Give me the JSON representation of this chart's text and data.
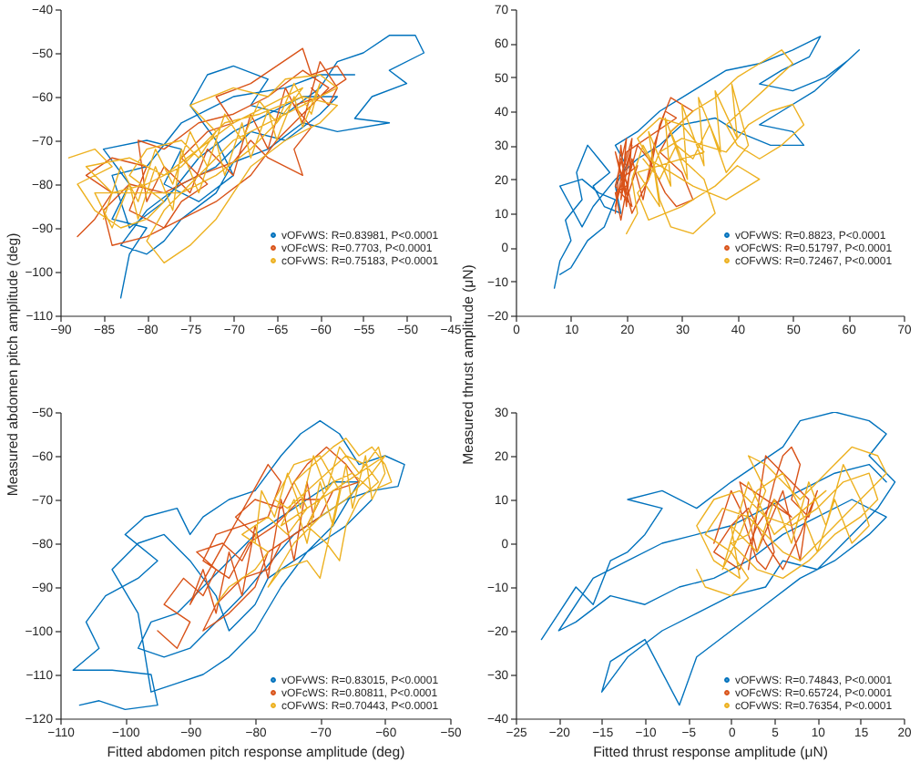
{
  "chart_data": [
    {
      "type": "line",
      "ylabel": "Measured abdomen pitch amplitude (deg)",
      "xlim": [
        -90,
        -45
      ],
      "ylim": [
        -110,
        -40
      ],
      "xticks": [
        -90,
        -85,
        -80,
        -75,
        -70,
        -65,
        -60,
        -55,
        -50,
        -45
      ],
      "yticks": [
        -110,
        -100,
        -90,
        -80,
        -70,
        -60,
        -50,
        -40
      ],
      "legend": "bottom right",
      "series": [
        {
          "name": "vOFvWS: R=0.83981, P<0.0001",
          "color": "#0072bd",
          "x": [
            -83,
            -82,
            -80,
            -84,
            -82,
            -85,
            -80,
            -76,
            -78,
            -74,
            -70,
            -72,
            -75,
            -73,
            -70,
            -66,
            -68,
            -64,
            -60,
            -58,
            -55,
            -52,
            -49,
            -48,
            -52,
            -50,
            -54,
            -56,
            -52,
            -58,
            -62,
            -66,
            -70,
            -72,
            -76,
            -78,
            -80,
            -83,
            -80,
            -76,
            -72,
            -68,
            -64,
            -60,
            -58,
            -62,
            -66,
            -70,
            -74,
            -78,
            -82,
            -84,
            -80,
            -76,
            -70,
            -64,
            -60,
            -56
          ],
          "values": [
            -106,
            -96,
            -90,
            -88,
            -80,
            -72,
            -70,
            -72,
            -80,
            -84,
            -78,
            -70,
            -62,
            -55,
            -53,
            -56,
            -62,
            -64,
            -58,
            -52,
            -50,
            -46,
            -46,
            -50,
            -54,
            -57,
            -60,
            -65,
            -66,
            -68,
            -66,
            -72,
            -75,
            -82,
            -88,
            -93,
            -96,
            -94,
            -86,
            -80,
            -76,
            -68,
            -70,
            -64,
            -60,
            -60,
            -64,
            -68,
            -74,
            -84,
            -90,
            -78,
            -76,
            -66,
            -60,
            -58,
            -55,
            -55
          ]
        },
        {
          "name": "vOFcWS: R=0.7703, P<0.0001",
          "color": "#d95319",
          "x": [
            -88,
            -86,
            -84,
            -87,
            -84,
            -80,
            -82,
            -78,
            -76,
            -73,
            -76,
            -73,
            -70,
            -72,
            -68,
            -65,
            -62,
            -61,
            -58,
            -57,
            -60,
            -63,
            -61,
            -63,
            -62,
            -66,
            -68,
            -70,
            -74,
            -78,
            -82,
            -85,
            -84,
            -80,
            -76,
            -72,
            -68,
            -65,
            -62,
            -59,
            -62,
            -66,
            -70,
            -74,
            -78,
            -81,
            -80,
            -78,
            -75,
            -73,
            -70,
            -68,
            -66,
            -64,
            -62,
            -60,
            -58,
            -59,
            -61
          ],
          "values": [
            -92,
            -88,
            -82,
            -78,
            -74,
            -76,
            -86,
            -90,
            -84,
            -80,
            -74,
            -68,
            -66,
            -60,
            -57,
            -53,
            -49,
            -55,
            -53,
            -56,
            -60,
            -62,
            -67,
            -72,
            -78,
            -74,
            -70,
            -75,
            -78,
            -82,
            -80,
            -86,
            -94,
            -92,
            -88,
            -84,
            -78,
            -70,
            -64,
            -58,
            -54,
            -60,
            -64,
            -66,
            -72,
            -70,
            -84,
            -76,
            -82,
            -72,
            -78,
            -64,
            -72,
            -58,
            -66,
            -52,
            -58,
            -62,
            -58
          ]
        },
        {
          "name": "cOFvWS: R=0.75183, P<0.0001",
          "color": "#edb120",
          "x": [
            -89,
            -86,
            -84,
            -88,
            -86,
            -83,
            -80,
            -78,
            -82,
            -80,
            -76,
            -74,
            -72,
            -75,
            -70,
            -66,
            -64,
            -60,
            -58,
            -62,
            -66,
            -70,
            -74,
            -78,
            -80,
            -78,
            -75,
            -72,
            -70,
            -68,
            -64,
            -60,
            -58,
            -62,
            -67,
            -71,
            -76,
            -80,
            -84,
            -87,
            -82,
            -78,
            -74,
            -70,
            -66,
            -62,
            -65,
            -68,
            -72,
            -76,
            -86,
            -84,
            -82,
            -81,
            -79,
            -77,
            -76,
            -74,
            -72,
            -71,
            -69,
            -68,
            -66,
            -65,
            -63,
            -62,
            -60,
            -61,
            -63,
            -65,
            -67,
            -69,
            -71,
            -73,
            -75,
            -77,
            -79,
            -81,
            -83,
            -85
          ],
          "values": [
            -74,
            -72,
            -76,
            -80,
            -86,
            -90,
            -88,
            -84,
            -78,
            -72,
            -70,
            -74,
            -68,
            -62,
            -58,
            -60,
            -56,
            -55,
            -58,
            -62,
            -66,
            -70,
            -78,
            -86,
            -93,
            -98,
            -94,
            -88,
            -82,
            -76,
            -70,
            -66,
            -62,
            -60,
            -64,
            -66,
            -76,
            -80,
            -82,
            -76,
            -74,
            -78,
            -72,
            -66,
            -62,
            -58,
            -66,
            -72,
            -78,
            -82,
            -82,
            -90,
            -80,
            -88,
            -76,
            -86,
            -72,
            -82,
            -70,
            -78,
            -66,
            -74,
            -63,
            -70,
            -60,
            -67,
            -57,
            -64,
            -57,
            -66,
            -61,
            -70,
            -64,
            -76,
            -68,
            -80,
            -72,
            -84,
            -76,
            -88
          ]
        }
      ]
    },
    {
      "type": "line",
      "ylabel": "Measured thrust amplitude (μN)",
      "xlim": [
        0,
        70
      ],
      "ylim": [
        -20,
        70
      ],
      "xticks": [
        0,
        10,
        20,
        30,
        40,
        50,
        60,
        70
      ],
      "yticks": [
        -20,
        -10,
        0,
        10,
        20,
        30,
        40,
        50,
        60,
        70
      ],
      "legend": "bottom right",
      "series": [
        {
          "name": "vOFvWS: R=0.8823, P<0.0001",
          "color": "#0072bd",
          "x": [
            7,
            8,
            10,
            9,
            12,
            11,
            13,
            15,
            17,
            14,
            16,
            19,
            18,
            20,
            18,
            22,
            26,
            30,
            34,
            38,
            44,
            50,
            55,
            53,
            48,
            44,
            50,
            56,
            60,
            62,
            58,
            54,
            48,
            44,
            50,
            52,
            46,
            40,
            36,
            30,
            26,
            22,
            18,
            14,
            12,
            10,
            8,
            12,
            15,
            18,
            16,
            13,
            10,
            8
          ],
          "values": [
            -12,
            -4,
            2,
            8,
            14,
            22,
            30,
            26,
            22,
            18,
            12,
            10,
            18,
            24,
            30,
            34,
            40,
            44,
            48,
            52,
            54,
            58,
            62,
            56,
            52,
            48,
            46,
            50,
            55,
            58,
            52,
            46,
            40,
            36,
            34,
            30,
            30,
            34,
            38,
            36,
            30,
            26,
            20,
            12,
            6,
            12,
            18,
            20,
            16,
            14,
            6,
            2,
            -6,
            -8
          ]
        },
        {
          "name": "vOFcWS: R=0.51797, P<0.0001",
          "color": "#d95319",
          "x": [
            18,
            19,
            20,
            21,
            19,
            22,
            20,
            18,
            21,
            24,
            26,
            28,
            30,
            32,
            28,
            26,
            30,
            32,
            29,
            27,
            24,
            22,
            20,
            18,
            19,
            21,
            23,
            25,
            27,
            29,
            20,
            18,
            21,
            19,
            20,
            18,
            21,
            19
          ],
          "values": [
            10,
            30,
            12,
            32,
            20,
            24,
            14,
            28,
            10,
            20,
            36,
            44,
            42,
            40,
            34,
            28,
            22,
            14,
            12,
            16,
            26,
            30,
            18,
            16,
            8,
            26,
            14,
            30,
            40,
            38,
            28,
            12,
            30,
            14,
            32,
            18,
            12,
            26
          ]
        },
        {
          "name": "cOFvWS: R=0.72467, P<0.0001",
          "color": "#edb120",
          "x": [
            20,
            22,
            21,
            23,
            25,
            26,
            28,
            32,
            36,
            34,
            30,
            28,
            32,
            36,
            40,
            44,
            48,
            50,
            46,
            42,
            38,
            40,
            44,
            48,
            52,
            50,
            46,
            42,
            38,
            34,
            30,
            26,
            24,
            22,
            24,
            30,
            36,
            40,
            44,
            38,
            32,
            28,
            24,
            22,
            26,
            30,
            34,
            22,
            26,
            24,
            28,
            27,
            31,
            30,
            34,
            33,
            37,
            36,
            40,
            39,
            42,
            38,
            35,
            32,
            29,
            26,
            23
          ],
          "values": [
            4,
            10,
            20,
            30,
            24,
            14,
            6,
            4,
            10,
            20,
            26,
            34,
            40,
            44,
            50,
            54,
            58,
            54,
            48,
            42,
            36,
            30,
            26,
            30,
            36,
            42,
            40,
            36,
            28,
            30,
            32,
            28,
            20,
            16,
            8,
            12,
            18,
            24,
            20,
            14,
            18,
            22,
            26,
            32,
            38,
            36,
            28,
            22,
            12,
            34,
            18,
            38,
            20,
            42,
            24,
            44,
            28,
            46,
            32,
            48,
            30,
            22,
            36,
            26,
            30,
            20,
            26
          ]
        }
      ]
    },
    {
      "type": "line",
      "xlabel": "Fitted abdomen pitch response amplitude (deg)",
      "xlim": [
        -110,
        -50
      ],
      "ylim": [
        -120,
        -50
      ],
      "xticks": [
        -110,
        -100,
        -90,
        -80,
        -70,
        -60,
        -50
      ],
      "yticks": [
        -120,
        -110,
        -100,
        -90,
        -80,
        -70,
        -60,
        -50
      ],
      "legend": "bottom right",
      "series": [
        {
          "name": "vOFvWS: R=0.83015, P<0.0001",
          "color": "#0072bd",
          "x": [
            -107,
            -104,
            -100,
            -95,
            -96,
            -102,
            -108,
            -104,
            -106,
            -103,
            -98,
            -95,
            -100,
            -97,
            -92,
            -90,
            -88,
            -84,
            -80,
            -76,
            -73,
            -70,
            -67,
            -64,
            -60,
            -57,
            -58,
            -62,
            -66,
            -70,
            -74,
            -78,
            -82,
            -86,
            -90,
            -94,
            -98,
            -96,
            -92,
            -88,
            -84,
            -80,
            -76,
            -72,
            -68,
            -64,
            -68,
            -72,
            -76,
            -80,
            -84,
            -88,
            -92,
            -96,
            -98,
            -102,
            -98,
            -94,
            -90,
            -86,
            -84,
            -80,
            -78,
            -74,
            -70,
            -66,
            -62
          ],
          "values": [
            -117,
            -116,
            -118,
            -117,
            -110,
            -109,
            -109,
            -104,
            -98,
            -92,
            -88,
            -84,
            -78,
            -74,
            -72,
            -78,
            -74,
            -70,
            -68,
            -60,
            -55,
            -52,
            -55,
            -62,
            -60,
            -62,
            -67,
            -68,
            -70,
            -74,
            -78,
            -85,
            -92,
            -98,
            -104,
            -106,
            -104,
            -98,
            -96,
            -90,
            -84,
            -78,
            -74,
            -70,
            -66,
            -66,
            -76,
            -82,
            -90,
            -100,
            -106,
            -110,
            -112,
            -114,
            -96,
            -86,
            -80,
            -78,
            -84,
            -92,
            -100,
            -94,
            -88,
            -84,
            -80,
            -76,
            -70
          ]
        },
        {
          "name": "vOFcWS: R=0.80811, P<0.0001",
          "color": "#d95319",
          "x": [
            -95,
            -92,
            -90,
            -94,
            -91,
            -88,
            -86,
            -89,
            -85,
            -82,
            -80,
            -83,
            -80,
            -76,
            -74,
            -72,
            -69,
            -66,
            -64,
            -68,
            -70,
            -74,
            -78,
            -80,
            -84,
            -88,
            -86,
            -82,
            -78,
            -76,
            -72,
            -70,
            -73,
            -77,
            -81,
            -84,
            -88,
            -86,
            -82,
            -78,
            -76,
            -78,
            -90,
            -88,
            -86,
            -84,
            -82,
            -80,
            -78,
            -76,
            -74,
            -72,
            -71
          ],
          "values": [
            -100,
            -104,
            -98,
            -94,
            -88,
            -92,
            -86,
            -82,
            -80,
            -84,
            -78,
            -74,
            -70,
            -72,
            -66,
            -62,
            -58,
            -62,
            -66,
            -68,
            -74,
            -78,
            -82,
            -90,
            -96,
            -100,
            -94,
            -88,
            -86,
            -80,
            -76,
            -70,
            -70,
            -76,
            -80,
            -88,
            -84,
            -78,
            -76,
            -74,
            -66,
            -62,
            -94,
            -86,
            -96,
            -82,
            -92,
            -76,
            -88,
            -70,
            -84,
            -66,
            -74
          ]
        },
        {
          "name": "cOFvWS: R=0.70443, P<0.0001",
          "color": "#edb120",
          "x": [
            -86,
            -84,
            -80,
            -78,
            -82,
            -78,
            -75,
            -72,
            -74,
            -71,
            -68,
            -66,
            -64,
            -62,
            -60,
            -59,
            -62,
            -65,
            -68,
            -70,
            -72,
            -69,
            -67,
            -66,
            -64,
            -61,
            -63,
            -66,
            -69,
            -72,
            -75,
            -77,
            -74,
            -70,
            -67,
            -70,
            -72,
            -76,
            -78,
            -74,
            -70,
            -66,
            -62,
            -60,
            -76,
            -74,
            -72,
            -70,
            -68,
            -66,
            -65,
            -63,
            -62,
            -60,
            -61,
            -64,
            -67,
            -69,
            -71,
            -73,
            -75,
            -77,
            -79,
            -80
          ],
          "values": [
            -94,
            -90,
            -86,
            -82,
            -78,
            -74,
            -78,
            -72,
            -66,
            -62,
            -58,
            -56,
            -60,
            -58,
            -62,
            -66,
            -68,
            -64,
            -66,
            -70,
            -76,
            -80,
            -84,
            -76,
            -70,
            -66,
            -62,
            -60,
            -64,
            -68,
            -72,
            -70,
            -62,
            -60,
            -68,
            -88,
            -84,
            -86,
            -90,
            -80,
            -74,
            -70,
            -64,
            -60,
            -76,
            -70,
            -80,
            -66,
            -76,
            -62,
            -72,
            -60,
            -70,
            -64,
            -58,
            -64,
            -58,
            -68,
            -60,
            -72,
            -64,
            -74,
            -68,
            -80
          ]
        }
      ]
    },
    {
      "type": "line",
      "xlabel": "Fitted thrust response amplitude (μN)",
      "xlim": [
        -25,
        20
      ],
      "ylim": [
        -40,
        30
      ],
      "xticks": [
        -25,
        -20,
        -15,
        -10,
        -5,
        0,
        5,
        10,
        15,
        20
      ],
      "yticks": [
        -40,
        -30,
        -20,
        -10,
        0,
        10,
        20,
        30
      ],
      "legend": "bottom right",
      "series": [
        {
          "name": "vOFvWS: R=0.74843, P<0.0001",
          "color": "#0072bd",
          "x": [
            -22,
            -20,
            -18,
            -16,
            -14,
            -12,
            -10,
            -8,
            -12,
            -8,
            -4,
            0,
            3,
            6,
            8,
            12,
            16,
            18,
            16,
            19,
            17,
            14,
            12,
            10,
            6,
            4,
            0,
            -4,
            -8,
            -12,
            -15,
            -14,
            -10,
            -6,
            -4,
            0,
            4,
            8,
            12,
            16,
            18,
            14,
            10,
            6,
            2,
            -2,
            -6,
            -10,
            -14,
            -18,
            -20,
            -16,
            -12,
            -8,
            -4,
            0,
            4,
            8,
            12,
            16,
            18
          ],
          "values": [
            -22,
            -16,
            -10,
            -14,
            -4,
            -2,
            2,
            8,
            10,
            12,
            8,
            14,
            18,
            22,
            28,
            30,
            28,
            25,
            20,
            14,
            8,
            2,
            -2,
            -6,
            -4,
            -10,
            -12,
            -16,
            -20,
            -26,
            -34,
            -27,
            -22,
            -37,
            -26,
            -20,
            -14,
            -8,
            -4,
            2,
            6,
            10,
            6,
            2,
            -4,
            -8,
            -10,
            -14,
            -12,
            -18,
            -20,
            -8,
            -4,
            0,
            2,
            4,
            8,
            12,
            16,
            18,
            14
          ]
        },
        {
          "name": "vOFcWS: R=0.65724, P<0.0001",
          "color": "#d95319",
          "x": [
            -2,
            -1,
            0,
            1,
            2,
            3,
            4,
            5,
            4,
            5,
            6,
            7,
            8,
            7,
            9,
            10,
            8,
            6,
            4,
            2,
            0,
            -2,
            1,
            3,
            5,
            7,
            1,
            3,
            6,
            8,
            9,
            4,
            2
          ],
          "values": [
            0,
            6,
            12,
            8,
            2,
            -4,
            -6,
            -2,
            6,
            14,
            20,
            22,
            18,
            10,
            6,
            12,
            2,
            -6,
            0,
            8,
            4,
            -2,
            -6,
            4,
            10,
            6,
            14,
            -2,
            12,
            -4,
            10,
            20,
            -6
          ]
        },
        {
          "name": "cOFvWS: R=0.76354, P<0.0001",
          "color": "#edb120",
          "x": [
            -4,
            -3,
            0,
            2,
            0,
            -3,
            -1,
            2,
            4,
            6,
            8,
            10,
            12,
            14,
            16,
            18,
            17,
            14,
            12,
            10,
            8,
            6,
            4,
            2,
            4,
            2,
            0,
            3,
            6,
            9,
            12,
            15,
            17,
            16,
            13,
            10,
            7,
            4,
            1,
            -2,
            -4,
            -2,
            1,
            0,
            3,
            5,
            7,
            9,
            11,
            13,
            15,
            16,
            14,
            12,
            10,
            8,
            6,
            3,
            1,
            -1,
            2,
            5,
            11
          ],
          "values": [
            -6,
            -10,
            -12,
            -8,
            -2,
            2,
            8,
            6,
            2,
            -2,
            -4,
            0,
            4,
            8,
            12,
            16,
            20,
            22,
            18,
            14,
            10,
            14,
            18,
            20,
            12,
            2,
            0,
            -6,
            -8,
            -4,
            2,
            6,
            10,
            16,
            14,
            8,
            4,
            6,
            12,
            10,
            4,
            -4,
            -8,
            4,
            -2,
            10,
            0,
            14,
            4,
            18,
            10,
            4,
            0,
            10,
            -2,
            8,
            16,
            12,
            2,
            -6,
            14,
            2,
            12
          ]
        }
      ]
    }
  ]
}
